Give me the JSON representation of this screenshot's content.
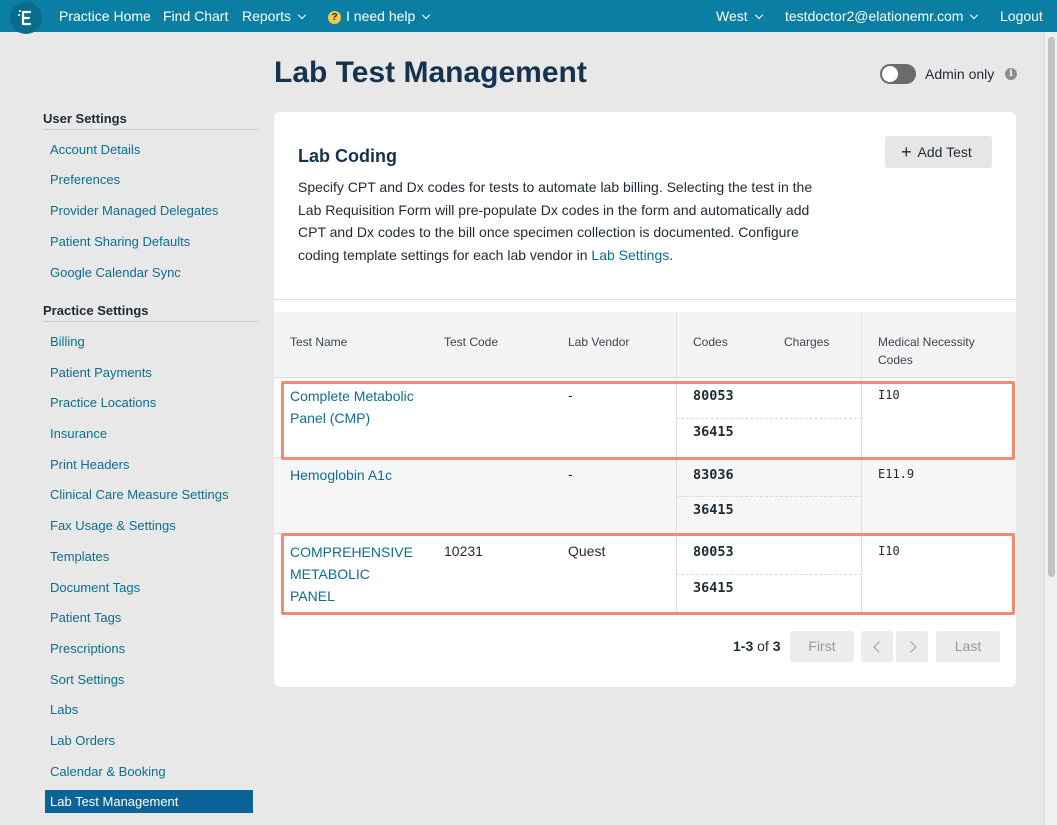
{
  "topnav": {
    "practice_home": "Practice Home",
    "find_chart": "Find Chart",
    "reports": "Reports",
    "help": "I need help",
    "location": "West",
    "user_email": "testdoctor2@elationemr.com",
    "logout": "Logout"
  },
  "sidebar": {
    "user_settings_title": "User Settings",
    "user_settings": [
      "Account Details",
      "Preferences",
      "Provider Managed Delegates",
      "Patient Sharing Defaults",
      "Google Calendar Sync"
    ],
    "practice_settings_title": "Practice Settings",
    "practice_settings": [
      "Billing",
      "Patient Payments",
      "Practice Locations",
      "Insurance",
      "Print Headers",
      "Clinical Care Measure Settings",
      "Fax Usage & Settings",
      "Templates",
      "Document Tags",
      "Patient Tags",
      "Prescriptions",
      "Sort Settings",
      "Labs",
      "Lab Orders",
      "Calendar & Booking",
      "Lab Test Management"
    ],
    "active_item": "Lab Test Management"
  },
  "page": {
    "title": "Lab Test Management",
    "admin_only_label": "Admin only",
    "admin_only_on": false
  },
  "card": {
    "title": "Lab Coding",
    "add_button": "Add Test",
    "description": "Specify CPT and Dx codes for tests to automate lab billing. Selecting the test in the Lab Requisition Form will pre-populate Dx codes in the form and automatically add CPT and Dx codes to the bill once specimen collection is documented. Configure coding template settings for each lab vendor in",
    "description_link": "Lab Settings",
    "description_end": "."
  },
  "table": {
    "headers": {
      "test_name": "Test Name",
      "test_code": "Test Code",
      "lab_vendor": "Lab Vendor",
      "codes": "Codes",
      "charges": "Charges",
      "medical_necessity_line1": "Medical Necessity",
      "medical_necessity_line2": "Codes"
    },
    "rows": [
      {
        "test_name": "Complete Metabolic Panel (CMP)",
        "test_code": "",
        "lab_vendor": "-",
        "codes": [
          "80053",
          "36415"
        ],
        "medical_necessity": "I10"
      },
      {
        "test_name": "Hemoglobin A1c",
        "test_code": "",
        "lab_vendor": "-",
        "codes": [
          "83036",
          "36415"
        ],
        "medical_necessity": "E11.9"
      },
      {
        "test_name": "COMPREHENSIVE METABOLIC PANEL",
        "test_code": "10231",
        "lab_vendor": "Quest",
        "codes": [
          "80053",
          "36415"
        ],
        "medical_necessity": "I10"
      }
    ]
  },
  "pagination": {
    "range": "1-3",
    "of_label": "of",
    "total": "3",
    "first": "First",
    "last": "Last"
  },
  "colors": {
    "nav_bg": "#0b7fa3",
    "link": "#0b6e92",
    "active_sidebar": "#0b6497",
    "highlight_border": "#f28a74"
  }
}
